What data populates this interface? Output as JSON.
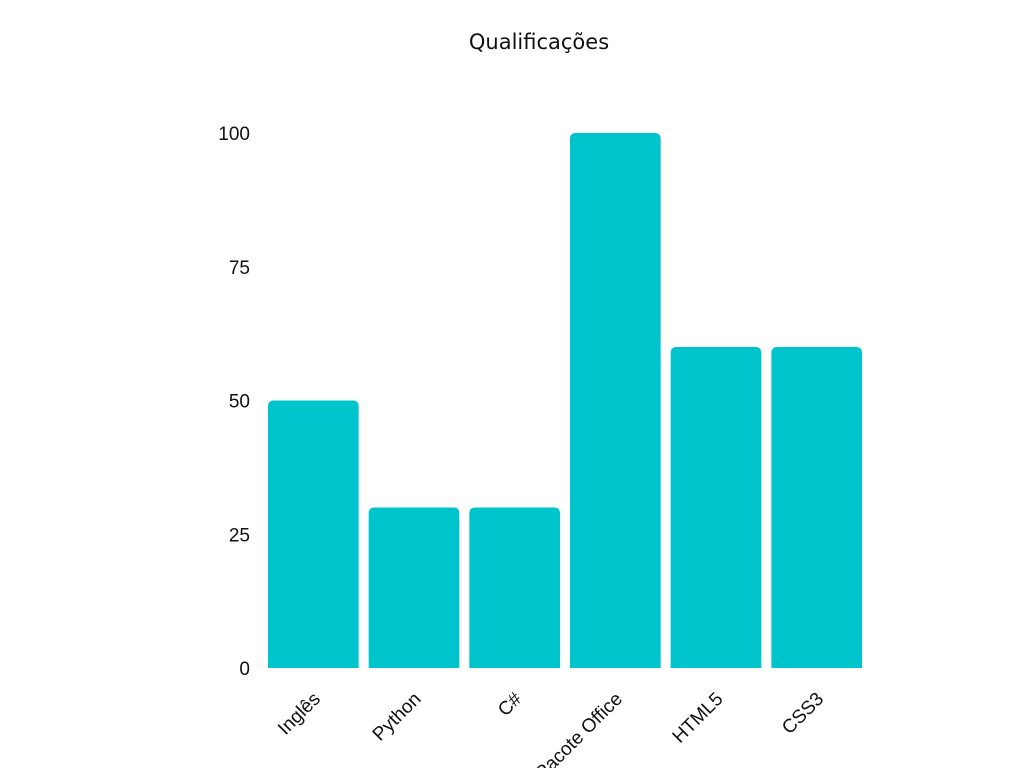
{
  "chart_data": {
    "type": "bar",
    "title": "Qualificações",
    "xlabel": "",
    "ylabel": "",
    "categories": [
      "Inglês",
      "Python",
      "C#",
      "Pacote Office",
      "HTML5",
      "CSS3"
    ],
    "values": [
      50,
      30,
      30,
      100,
      60,
      60
    ],
    "ylim": [
      0,
      100
    ],
    "yticks": [
      0,
      25,
      50,
      75,
      100
    ],
    "grid": false,
    "legend": "none",
    "bar_color": "#00C4CC"
  }
}
